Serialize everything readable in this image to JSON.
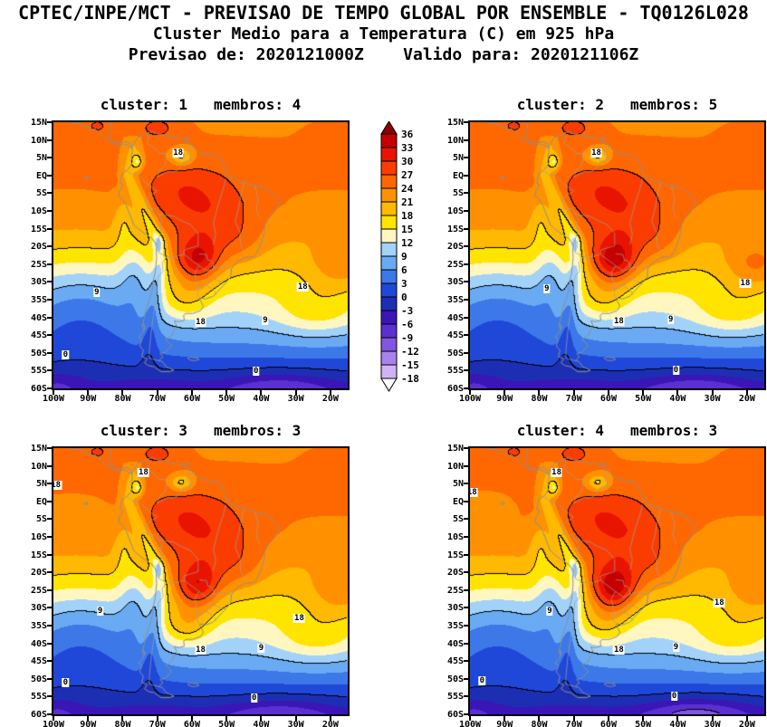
{
  "header": {
    "line1": "CPTEC/INPE/MCT - PREVISAO DE TEMPO GLOBAL POR ENSEMBLE - TQ0126L028",
    "line2": "Cluster Medio para a Temperatura (C) em 925 hPa",
    "line3": "Previsao de: 2020121000Z    Valido para: 2020121106Z"
  },
  "panels": [
    {
      "title": "cluster: 1   membros: 4",
      "cluster": 1,
      "membros": 4,
      "contour_labels": [
        {
          "t": "18",
          "lon": -64,
          "lat": 6.2
        },
        {
          "t": "9",
          "lon": -87.5,
          "lat": -33
        },
        {
          "t": "18",
          "lon": -28,
          "lat": -31.5
        },
        {
          "t": "18",
          "lon": -57.5,
          "lat": -41.5
        },
        {
          "t": "9",
          "lon": -38.8,
          "lat": -40.8
        },
        {
          "t": "0",
          "lon": -96.5,
          "lat": -50.5
        },
        {
          "t": "0",
          "lon": -41.5,
          "lat": -55.2
        }
      ]
    },
    {
      "title": "cluster: 2   membros: 5",
      "cluster": 2,
      "membros": 5,
      "contour_labels": [
        {
          "t": "18",
          "lon": -63.5,
          "lat": 6.2
        },
        {
          "t": "9",
          "lon": -77.8,
          "lat": -32
        },
        {
          "t": "18",
          "lon": -20.5,
          "lat": -30.5
        },
        {
          "t": "18",
          "lon": -57,
          "lat": -41
        },
        {
          "t": "9",
          "lon": -42,
          "lat": -40.5
        },
        {
          "t": "0",
          "lon": -40.5,
          "lat": -54.8
        }
      ]
    },
    {
      "title": "cluster: 3   membros: 3",
      "cluster": 3,
      "membros": 3,
      "contour_labels": [
        {
          "t": "18",
          "lon": -74,
          "lat": 8
        },
        {
          "t": "18",
          "lon": -99.3,
          "lat": 4.5
        },
        {
          "t": "9",
          "lon": -86.5,
          "lat": -31
        },
        {
          "t": "18",
          "lon": -29,
          "lat": -33
        },
        {
          "t": "18",
          "lon": -57.5,
          "lat": -42
        },
        {
          "t": "9",
          "lon": -40,
          "lat": -41.5
        },
        {
          "t": "0",
          "lon": -96.5,
          "lat": -51
        },
        {
          "t": "0",
          "lon": -42,
          "lat": -55.5
        }
      ]
    },
    {
      "title": "cluster: 4   membros: 3",
      "cluster": 4,
      "membros": 3,
      "contour_labels": [
        {
          "t": "18",
          "lon": -75,
          "lat": 8
        },
        {
          "t": "18",
          "lon": -99.4,
          "lat": 2.5
        },
        {
          "t": "9",
          "lon": -77,
          "lat": -31
        },
        {
          "t": "18",
          "lon": -28,
          "lat": -28.5
        },
        {
          "t": "18",
          "lon": -57,
          "lat": -42
        },
        {
          "t": "9",
          "lon": -40.5,
          "lat": -41
        },
        {
          "t": "0",
          "lon": -96.5,
          "lat": -50.5
        },
        {
          "t": "0",
          "lon": -41,
          "lat": -55
        }
      ]
    }
  ],
  "axes": {
    "lat_labels": [
      "15N",
      "10N",
      "5N",
      "EQ",
      "5S",
      "10S",
      "15S",
      "20S",
      "25S",
      "30S",
      "35S",
      "40S",
      "45S",
      "50S",
      "55S",
      "60S"
    ],
    "lat_values": [
      15,
      10,
      5,
      0,
      -5,
      -10,
      -15,
      -20,
      -25,
      -30,
      -35,
      -40,
      -45,
      -50,
      -55,
      -60
    ],
    "lon_labels": [
      "100W",
      "90W",
      "80W",
      "70W",
      "60W",
      "50W",
      "40W",
      "30W",
      "20W"
    ],
    "lon_values": [
      -100,
      -90,
      -80,
      -70,
      -60,
      -50,
      -40,
      -30,
      -20
    ]
  },
  "colorbar": {
    "tick_values": [
      36,
      33,
      30,
      27,
      24,
      21,
      18,
      15,
      12,
      9,
      6,
      3,
      0,
      -3,
      -6,
      -9,
      -12,
      -15,
      -18
    ],
    "cell_colors_top_to_bottom": [
      "#c60000",
      "#e81400",
      "#fb3c00",
      "#ff6800",
      "#ff9100",
      "#ffb900",
      "#ffe400",
      "#fff6c0",
      "#a2d2fa",
      "#6aaaf2",
      "#3c78e8",
      "#2048d8",
      "#1c2fb4",
      "#3a16b6",
      "#5c2fd0",
      "#8156e0",
      "#a983ec",
      "#cfb3f6"
    ],
    "triangle_top_color": "#8c0000",
    "triangle_bottom_color": "#ffffff"
  },
  "chart_data": {
    "type": "heatmap",
    "subtype": "filled-contour-temperature-maps",
    "title": "CPTEC/INPE/MCT - PREVISAO DE TEMPO GLOBAL POR ENSEMBLE - TQ0126L028",
    "subtitle": "Cluster Medio para a Temperatura (C) em 925 hPa",
    "forecast_init": "2020121000Z",
    "forecast_valid": "2020121106Z",
    "variable": "Temperatura",
    "units": "C",
    "level_hPa": 925,
    "lon_range_deg": [
      -100,
      -15
    ],
    "lat_range_deg": [
      -60,
      15
    ],
    "fill_levels_c": [
      -18,
      -15,
      -12,
      -9,
      -6,
      -3,
      0,
      3,
      6,
      9,
      12,
      15,
      18,
      21,
      24,
      27,
      30,
      33,
      36
    ],
    "line_contour_levels_c": [
      -9,
      0,
      9,
      18,
      27
    ],
    "panels": [
      {
        "cluster": 1,
        "membros": 4
      },
      {
        "cluster": 2,
        "membros": 5
      },
      {
        "cluster": 3,
        "membros": 3
      },
      {
        "cluster": 4,
        "membros": 3
      }
    ]
  }
}
